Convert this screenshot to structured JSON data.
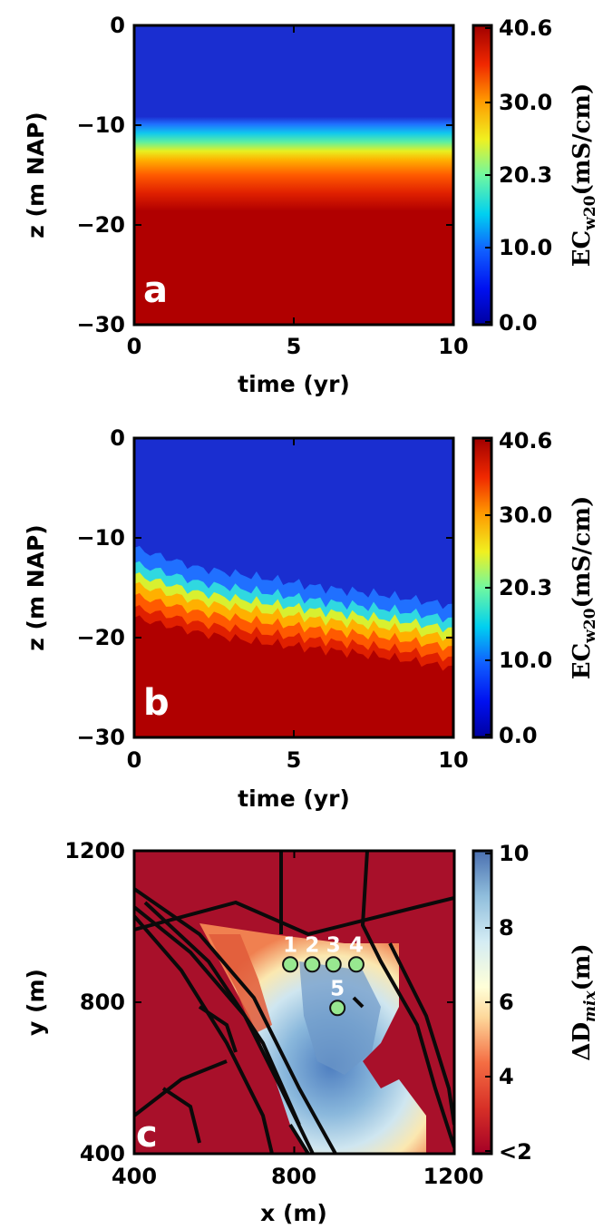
{
  "chart_data": [
    {
      "type": "heatmap",
      "panel_label": "a",
      "xlabel": "time (yr)",
      "ylabel": "z (m NAP)",
      "xlim": [
        0,
        10
      ],
      "ylim": [
        -30,
        0
      ],
      "xticks": [
        "0",
        "5",
        "10"
      ],
      "yticks": [
        "0",
        "−10",
        "−20",
        "−30"
      ],
      "colorbar": {
        "label": "EC",
        "label_sub": "w20",
        "label_unit": "(mS/cm)",
        "ticks": [
          "0.0",
          "10.0",
          "20.3",
          "30.0",
          "40.6"
        ],
        "range": [
          0,
          40.6
        ]
      },
      "fresh_saline_interface_depth_m": {
        "time_yr": [
          0,
          2,
          4,
          6,
          8,
          10
        ],
        "top_of_transition": [
          -11,
          -11,
          -11,
          -11,
          -11,
          -11
        ],
        "bottom_of_transition": [
          -18.5,
          -18.5,
          -18.5,
          -18.5,
          -18.5,
          -18.5
        ]
      }
    },
    {
      "type": "heatmap",
      "panel_label": "b",
      "xlabel": "time (yr)",
      "ylabel": "z (m NAP)",
      "xlim": [
        0,
        10
      ],
      "ylim": [
        -30,
        0
      ],
      "xticks": [
        "0",
        "5",
        "10"
      ],
      "yticks": [
        "0",
        "−10",
        "−20",
        "−30"
      ],
      "colorbar": {
        "label": "EC",
        "label_sub": "w20",
        "label_unit": "(mS/cm)",
        "ticks": [
          "0.0",
          "10.0",
          "20.3",
          "30.0",
          "40.6"
        ],
        "range": [
          0,
          40.6
        ]
      },
      "fresh_saline_interface_depth_m": {
        "time_yr": [
          0,
          2,
          4,
          6,
          8,
          10
        ],
        "top_of_transition": [
          -11,
          -13,
          -14,
          -15,
          -15.8,
          -16.8
        ],
        "bottom_of_transition": [
          -18,
          -19.5,
          -20.5,
          -21.2,
          -22,
          -23
        ]
      }
    },
    {
      "type": "heatmap",
      "panel_label": "c",
      "xlabel": "x (m)",
      "ylabel": "y (m)",
      "xlim": [
        400,
        1200
      ],
      "ylim": [
        400,
        1200
      ],
      "xticks": [
        "400",
        "800",
        "1200"
      ],
      "yticks": [
        "400",
        "800",
        "1200"
      ],
      "colorbar": {
        "label": "ΔD",
        "label_sub": "mix",
        "label_unit": "(m)",
        "ticks": [
          "<2",
          "4",
          "6",
          "8",
          "10"
        ],
        "range": [
          2,
          10
        ]
      },
      "wells": [
        {
          "label": "1",
          "x": 790,
          "y": 900
        },
        {
          "label": "2",
          "x": 845,
          "y": 900
        },
        {
          "label": "3",
          "x": 898,
          "y": 900
        },
        {
          "label": "4",
          "x": 955,
          "y": 900
        },
        {
          "label": "5",
          "x": 908,
          "y": 785
        }
      ]
    }
  ]
}
